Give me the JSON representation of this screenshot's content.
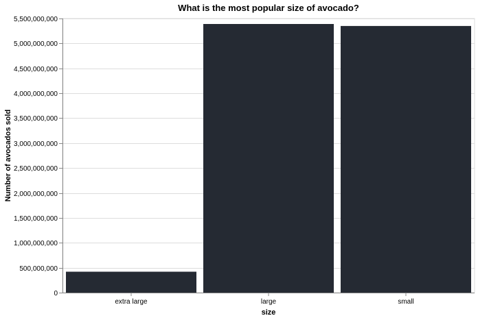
{
  "chart_data": {
    "type": "bar",
    "title": "What is the most popular size of avocado?",
    "xlabel": "size",
    "ylabel": "Number of avocados sold",
    "categories": [
      "extra large",
      "large",
      "small"
    ],
    "values": [
      420000000,
      5390000000,
      5350000000
    ],
    "ylim": [
      0,
      5500000000
    ],
    "yticks": [
      0,
      500000000,
      1000000000,
      1500000000,
      2000000000,
      2500000000,
      3000000000,
      3500000000,
      4000000000,
      4500000000,
      5000000000,
      5500000000
    ],
    "ytick_labels": [
      "0",
      "500,000,000",
      "1,000,000,000",
      "1,500,000,000",
      "2,000,000,000",
      "2,500,000,000",
      "3,000,000,000",
      "3,500,000,000",
      "4,000,000,000",
      "4,500,000,000",
      "5,000,000,000",
      "5,500,000,000"
    ],
    "grid": true,
    "bar_color": "#252a33",
    "grid_color": "#dddddd",
    "axis_color": "#888888"
  }
}
